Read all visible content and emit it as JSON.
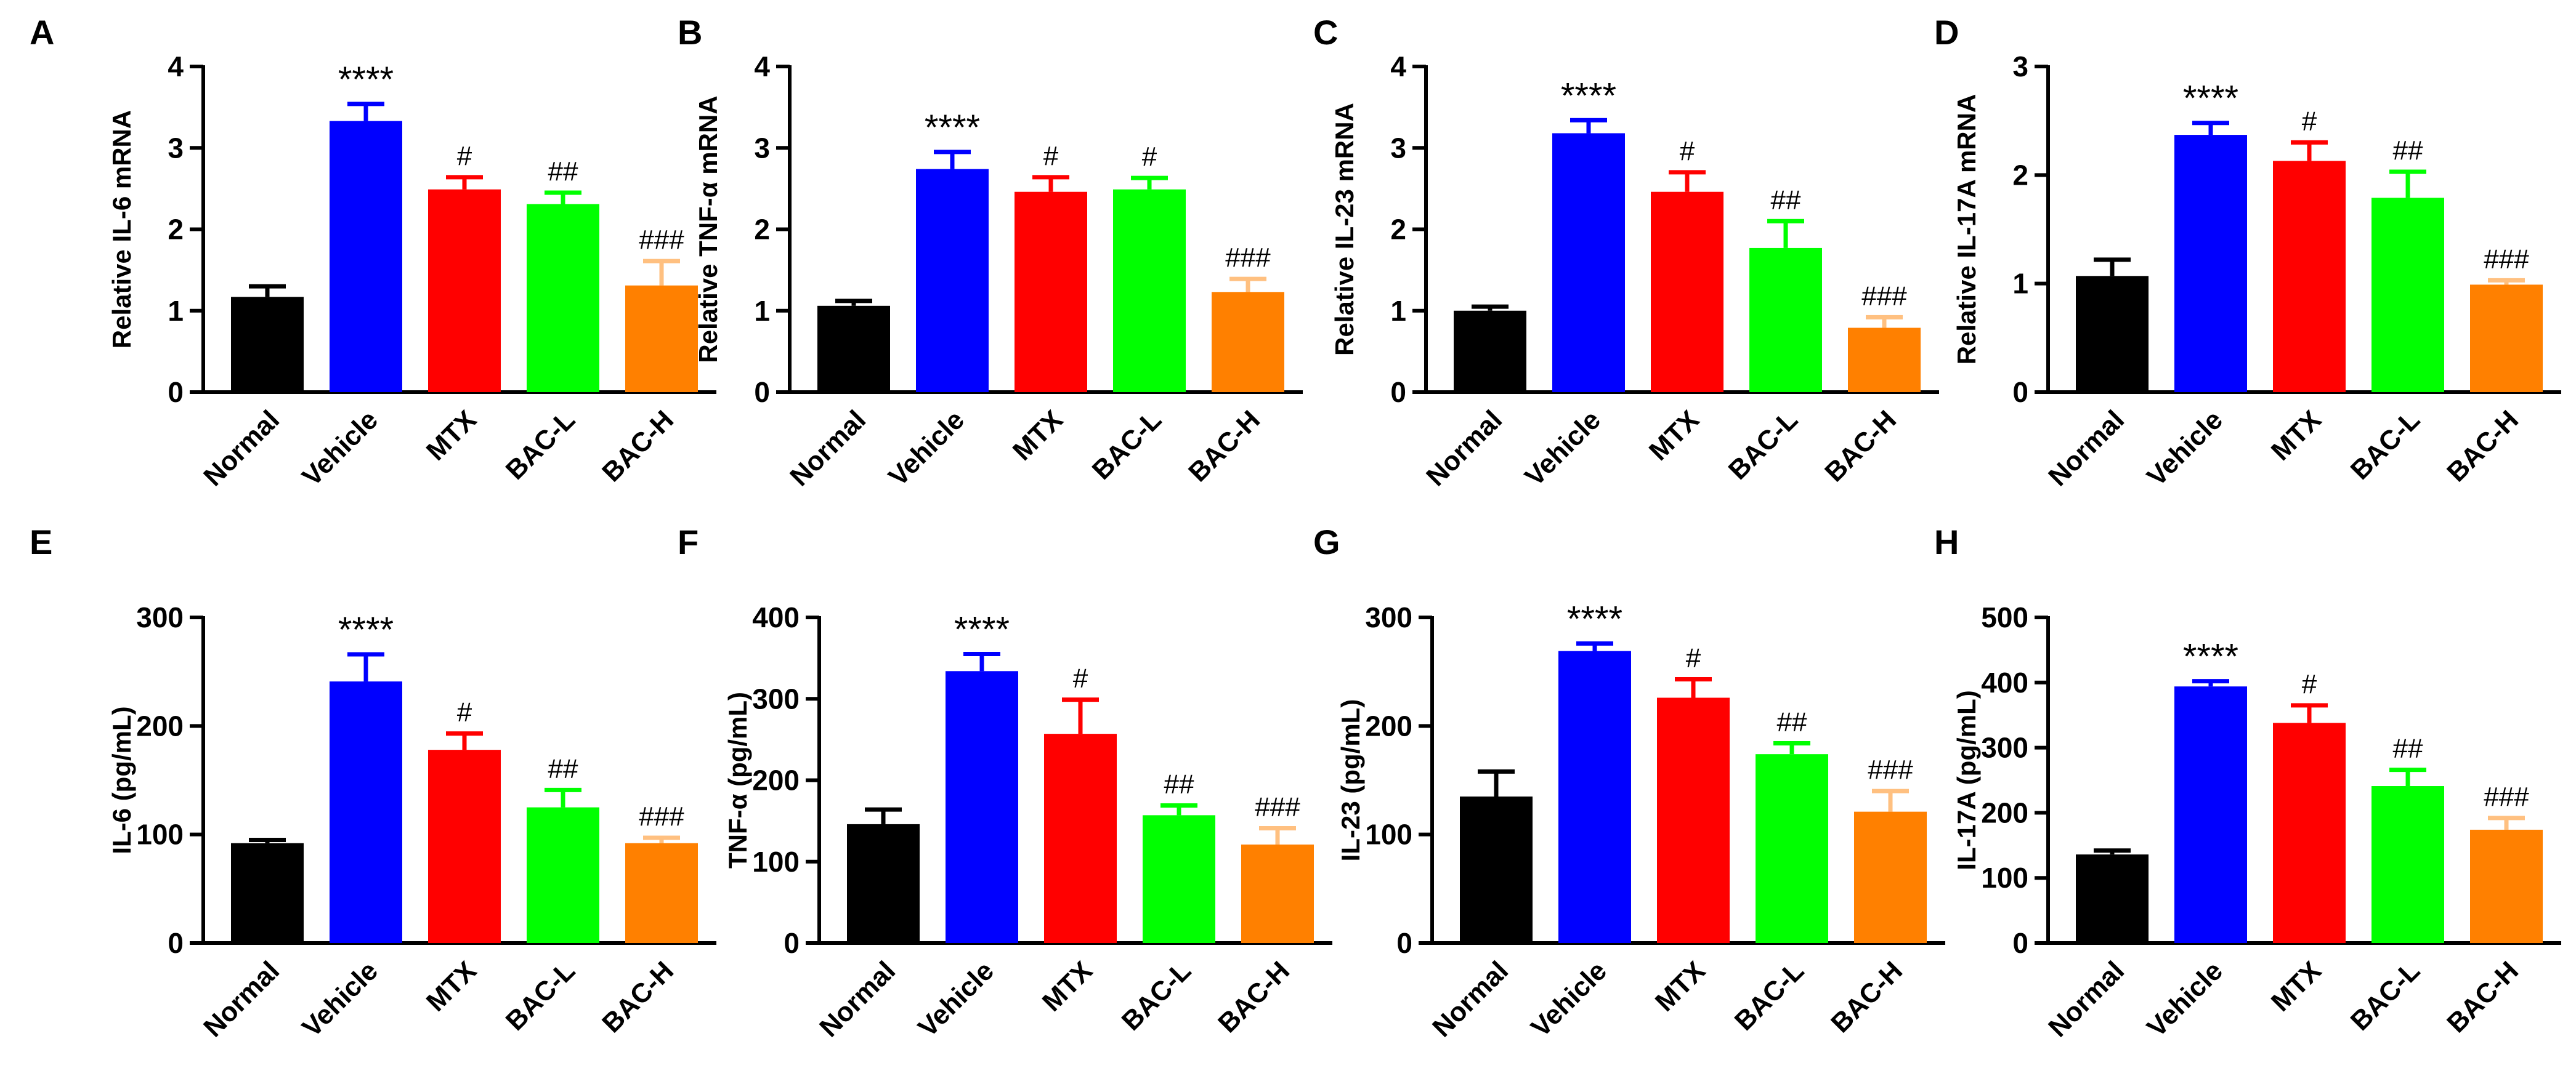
{
  "figure": {
    "colors": {
      "axis": "#000000",
      "bars": [
        "#000000",
        "#0000ff",
        "#ff0000",
        "#00ff00",
        "#ff8000"
      ],
      "errors": [
        "#000000",
        "#0000ff",
        "#ff0000",
        "#00ff00",
        "#ffc080"
      ]
    }
  },
  "chart_data": [
    {
      "panel_label": "A",
      "type": "bar",
      "title": "",
      "xlabel": "",
      "ylabel": "Relative IL-6 mRNA",
      "categories": [
        "Normal",
        "Vehicle",
        "MTX",
        "BAC-L",
        "BAC-H"
      ],
      "values": [
        1.17,
        3.33,
        2.49,
        2.31,
        1.31
      ],
      "errors": [
        0.13,
        0.21,
        0.15,
        0.14,
        0.3
      ],
      "annotations": [
        "",
        "****",
        "#",
        "##",
        "###"
      ],
      "ylim": [
        0,
        4
      ],
      "yticks": [
        0,
        1,
        2,
        3,
        4
      ]
    },
    {
      "panel_label": "B",
      "type": "bar",
      "title": "",
      "xlabel": "",
      "ylabel": "Relative TNF-α mRNA",
      "categories": [
        "Normal",
        "Vehicle",
        "MTX",
        "BAC-L",
        "BAC-H"
      ],
      "values": [
        1.06,
        2.74,
        2.46,
        2.49,
        1.23
      ],
      "errors": [
        0.06,
        0.21,
        0.18,
        0.14,
        0.16
      ],
      "annotations": [
        "",
        "****",
        "#",
        "#",
        "###"
      ],
      "ylim": [
        0,
        4
      ],
      "yticks": [
        0,
        1,
        2,
        3,
        4
      ]
    },
    {
      "panel_label": "C",
      "type": "bar",
      "title": "",
      "xlabel": "",
      "ylabel": "Relative IL-23 mRNA",
      "categories": [
        "Normal",
        "Vehicle",
        "MTX",
        "BAC-L",
        "BAC-H"
      ],
      "values": [
        1.0,
        3.18,
        2.46,
        1.77,
        0.79
      ],
      "errors": [
        0.05,
        0.16,
        0.24,
        0.33,
        0.13
      ],
      "annotations": [
        "",
        "****",
        "#",
        "##",
        "###"
      ],
      "ylim": [
        0,
        4
      ],
      "yticks": [
        0,
        1,
        2,
        3,
        4
      ]
    },
    {
      "panel_label": "D",
      "type": "bar",
      "title": "",
      "xlabel": "",
      "ylabel": "Relative IL-17A mRNA",
      "categories": [
        "Normal",
        "Vehicle",
        "MTX",
        "BAC-L",
        "BAC-H"
      ],
      "values": [
        1.07,
        2.37,
        2.13,
        1.79,
        0.99
      ],
      "errors": [
        0.15,
        0.11,
        0.17,
        0.24,
        0.04
      ],
      "annotations": [
        "",
        "****",
        "#",
        "##",
        "###"
      ],
      "ylim": [
        0,
        3
      ],
      "yticks": [
        0,
        1,
        2,
        3
      ]
    },
    {
      "panel_label": "E",
      "type": "bar",
      "title": "",
      "xlabel": "",
      "ylabel": "IL-6 (pg/mL)",
      "categories": [
        "Normal",
        "Vehicle",
        "MTX",
        "BAC-L",
        "BAC-H"
      ],
      "values": [
        92,
        241,
        178,
        125,
        92
      ],
      "errors": [
        3,
        25,
        15,
        16,
        5
      ],
      "annotations": [
        "",
        "****",
        "#",
        "##",
        "###"
      ],
      "ylim": [
        0,
        300
      ],
      "yticks": [
        0,
        100,
        200,
        300
      ]
    },
    {
      "panel_label": "F",
      "type": "bar",
      "title": "",
      "xlabel": "",
      "ylabel": "TNF-α (pg/mL)",
      "categories": [
        "Normal",
        "Vehicle",
        "MTX",
        "BAC-L",
        "BAC-H"
      ],
      "values": [
        146,
        334,
        257,
        157,
        121
      ],
      "errors": [
        18,
        21,
        42,
        12,
        20
      ],
      "annotations": [
        "",
        "****",
        "#",
        "##",
        "###"
      ],
      "ylim": [
        0,
        400
      ],
      "yticks": [
        0,
        100,
        200,
        300,
        400
      ]
    },
    {
      "panel_label": "G",
      "type": "bar",
      "title": "",
      "xlabel": "",
      "ylabel": "IL-23  (pg/mL)",
      "categories": [
        "Normal",
        "Vehicle",
        "MTX",
        "BAC-L",
        "BAC-H"
      ],
      "values": [
        135,
        269,
        226,
        174,
        121
      ],
      "errors": [
        23,
        7,
        17,
        10,
        19
      ],
      "annotations": [
        "",
        "****",
        "#",
        "##",
        "###"
      ],
      "ylim": [
        0,
        300
      ],
      "yticks": [
        0,
        100,
        200,
        300
      ]
    },
    {
      "panel_label": "H",
      "type": "bar",
      "title": "",
      "xlabel": "",
      "ylabel": "IL-17A  (pg/mL)",
      "categories": [
        "Normal",
        "Vehicle",
        "MTX",
        "BAC-L",
        "BAC-H"
      ],
      "values": [
        136,
        394,
        338,
        241,
        174
      ],
      "errors": [
        6,
        8,
        27,
        25,
        18
      ],
      "annotations": [
        "",
        "****",
        "#",
        "##",
        "###"
      ],
      "ylim": [
        0,
        500
      ],
      "yticks": [
        0,
        100,
        200,
        300,
        400,
        500
      ]
    }
  ]
}
